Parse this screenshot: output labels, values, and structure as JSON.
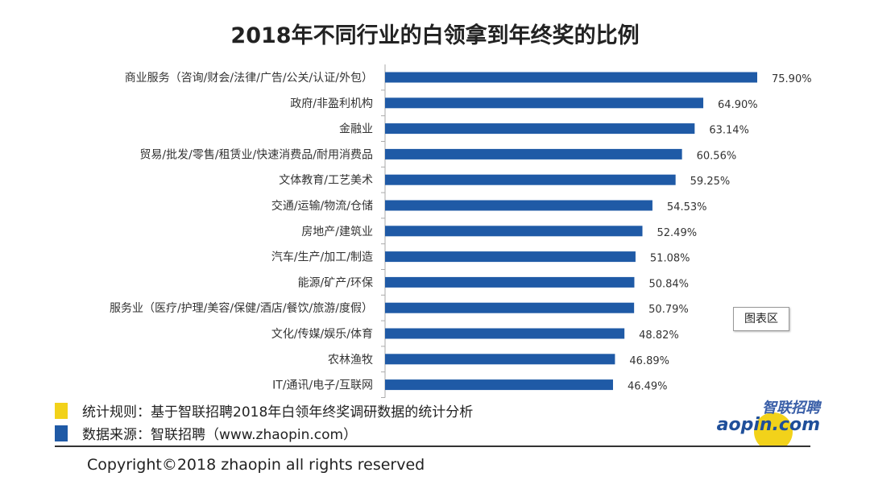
{
  "chart_data": {
    "type": "bar",
    "orientation": "horizontal",
    "title": "2018年不同行业的白领拿到年终奖的比例",
    "categories": [
      "商业服务（咨询/财会/法律/广告/公关/认证/外包）",
      "政府/非盈利机构",
      "金融业",
      "贸易/批发/零售/租赁业/快速消费品/耐用消费品",
      "文体教育/工艺美术",
      "交通/运输/物流/仓储",
      "房地产/建筑业",
      "汽车/生产/加工/制造",
      "能源/矿产/环保",
      "服务业（医疗/护理/美容/保健/酒店/餐饮/旅游/度假）",
      "文化/传媒/娱乐/体育",
      "农林渔牧",
      "IT/通讯/电子/互联网"
    ],
    "values": [
      75.9,
      64.9,
      63.14,
      60.56,
      59.25,
      54.53,
      52.49,
      51.08,
      50.84,
      50.79,
      48.82,
      46.89,
      46.49
    ],
    "labels": [
      "75.90%",
      "64.90%",
      "63.14%",
      "60.56%",
      "59.25%",
      "54.53%",
      "52.49%",
      "51.08%",
      "50.84%",
      "50.79%",
      "48.82%",
      "46.89%",
      "46.49%"
    ],
    "xlim": [
      0,
      80
    ],
    "bar_color": "#1f5aa6",
    "grid": false
  },
  "tooltip": "图表区",
  "legend": [
    {
      "text": "统计规则：基于智联招聘2018年白领年终奖调研数据的统计分析",
      "color": "#f2d21a"
    },
    {
      "text": "数据来源：智联招聘（www.zhaopin.com）",
      "color": "#1f5aa6"
    }
  ],
  "logo": {
    "cn": "智联招聘",
    "en": "zhaopin.com"
  },
  "copyright": "Copyright©2018 zhaopin all rights reserved"
}
